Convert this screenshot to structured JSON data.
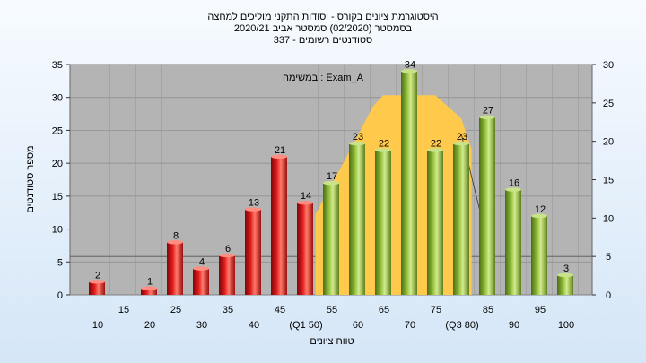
{
  "chart_data": {
    "type": "bar",
    "title_lines": [
      "היסטוגרמת ציונים בקורס - יסודות התקני מוליכים למחצה",
      "בסמסטר (02/2020) סמסטר אביב 2020/21",
      "337 - סטודנטים רשומים"
    ],
    "ylabel": "מספר סטודנטים",
    "xlabel": "טווח ציונים",
    "ylim": [
      0,
      35
    ],
    "y_ticks": [
      "0",
      "5",
      "10",
      "15",
      "20",
      "25",
      "30",
      "35"
    ],
    "y2lim": [
      0,
      30
    ],
    "y2_ticks": [
      "0",
      "5",
      "10",
      "15",
      "20",
      "25",
      "30"
    ],
    "categories": [
      "10",
      "15",
      "20",
      "25",
      "30",
      "35",
      "40",
      "45",
      "50",
      "55",
      "60",
      "65",
      "70",
      "75",
      "80",
      "85",
      "90",
      "95",
      "100"
    ],
    "values": [
      2,
      0,
      1,
      8,
      4,
      6,
      13,
      21,
      14,
      17,
      23,
      22,
      34,
      22,
      23,
      27,
      16,
      12,
      3
    ],
    "bar_labels": [
      "2",
      "",
      "1",
      "8",
      "4",
      "6",
      "13",
      "21",
      "14",
      "17",
      "23",
      "22",
      "34",
      "22",
      "23",
      "27",
      "16",
      "12",
      "3"
    ],
    "x_tick_labels_top": [
      "",
      "15",
      "",
      "25",
      "",
      "35",
      "",
      "45",
      "",
      "55",
      "",
      "65",
      "",
      "75",
      "",
      "85",
      "",
      "95",
      ""
    ],
    "x_tick_labels_bottom": [
      "10",
      "",
      "20",
      "",
      "30",
      "",
      "40",
      "",
      "(Q1 50)",
      "",
      "60",
      "",
      "70",
      "",
      "(Q3 80)",
      "",
      "90",
      "",
      "100"
    ],
    "pass_threshold": 55,
    "colors": {
      "fail": "#e0191b",
      "pass": "#8fbc3a",
      "distribution": "#ffc94c",
      "plot_bg": "#b4b4b4"
    },
    "distribution_curve_y2": [
      {
        "x": 52,
        "y": 10.5
      },
      {
        "x": 58,
        "y": 18
      },
      {
        "x": 63,
        "y": 24.5
      },
      {
        "x": 65,
        "y": 26
      },
      {
        "x": 75,
        "y": 26
      },
      {
        "x": 80,
        "y": 23
      },
      {
        "x": 82,
        "y": 19
      }
    ],
    "annotation": "במשימה : Exam_A",
    "grid": true
  }
}
